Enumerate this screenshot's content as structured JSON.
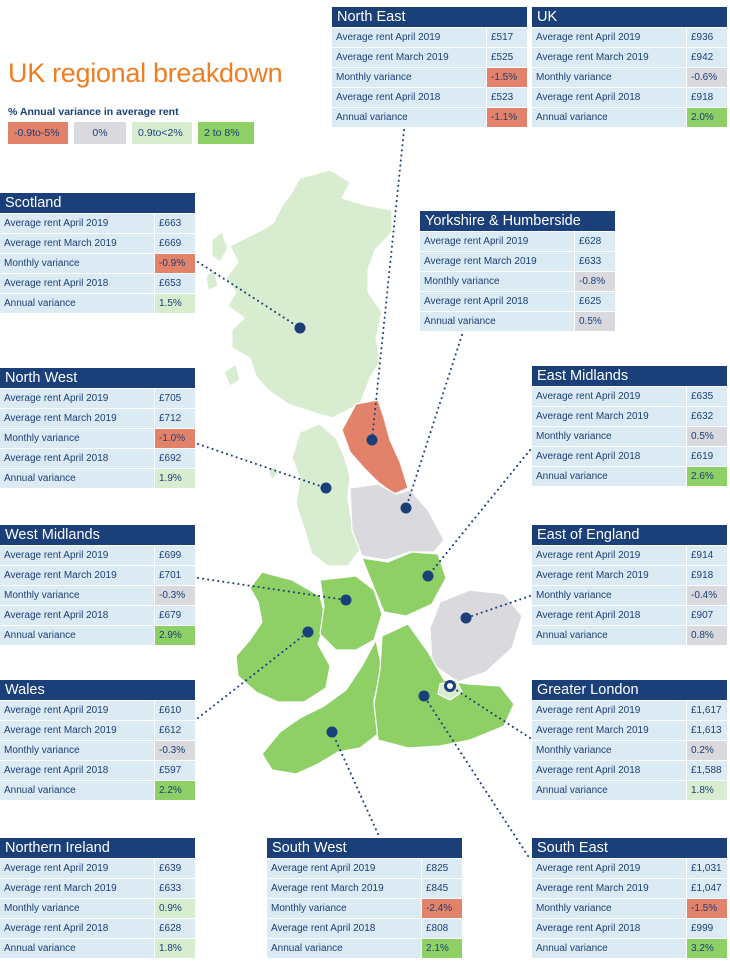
{
  "title": "UK regional breakdown",
  "legend": {
    "heading": "% Annual variance in average rent",
    "items": [
      {
        "label": "-0.9to-5%",
        "color": "#e2826a"
      },
      {
        "label": "0%",
        "color": "#d9d9de"
      },
      {
        "label": "0.9to<2%",
        "color": "#d8ecd0"
      },
      {
        "label": "2 to 8%",
        "color": "#8ecf66"
      }
    ]
  },
  "colors": {
    "header": "#1b3f78",
    "label_bg": "#dcebf3",
    "title": "#ef7d22",
    "marker": "#1b3f78"
  },
  "regions": {
    "north_east": {
      "name": "North East",
      "rows": [
        {
          "label": "Average rent April 2019",
          "value": "£517",
          "cls": ""
        },
        {
          "label": "Average rent March 2019",
          "value": "£525",
          "cls": ""
        },
        {
          "label": "Monthly variance",
          "value": "-1.5%",
          "cls": "c0"
        },
        {
          "label": "Average rent April 2018",
          "value": "£523",
          "cls": ""
        },
        {
          "label": "Annual variance",
          "value": "-1.1%",
          "cls": "c0"
        }
      ]
    },
    "uk": {
      "name": "UK",
      "rows": [
        {
          "label": "Average rent April 2019",
          "value": "£936",
          "cls": ""
        },
        {
          "label": "Average rent March 2019",
          "value": "£942",
          "cls": ""
        },
        {
          "label": "Monthly variance",
          "value": "-0.6%",
          "cls": "c1"
        },
        {
          "label": "Average rent April 2018",
          "value": "£918",
          "cls": ""
        },
        {
          "label": "Annual variance",
          "value": "2.0%",
          "cls": "c3"
        }
      ]
    },
    "scotland": {
      "name": "Scotland",
      "rows": [
        {
          "label": "Average rent April 2019",
          "value": "£663",
          "cls": ""
        },
        {
          "label": "Average rent March 2019",
          "value": "£669",
          "cls": ""
        },
        {
          "label": "Monthly variance",
          "value": "-0.9%",
          "cls": "c0"
        },
        {
          "label": "Average rent April 2018",
          "value": "£653",
          "cls": ""
        },
        {
          "label": "Annual variance",
          "value": "1.5%",
          "cls": "c2"
        }
      ]
    },
    "yorkshire": {
      "name": "Yorkshire & Humberside",
      "rows": [
        {
          "label": "Average rent April 2019",
          "value": "£628",
          "cls": ""
        },
        {
          "label": "Average rent March 2019",
          "value": "£633",
          "cls": ""
        },
        {
          "label": "Monthly variance",
          "value": "-0.8%",
          "cls": "c1"
        },
        {
          "label": "Average rent April 2018",
          "value": "£625",
          "cls": ""
        },
        {
          "label": "Annual variance",
          "value": "0.5%",
          "cls": "c1"
        }
      ]
    },
    "north_west": {
      "name": "North West",
      "rows": [
        {
          "label": "Average rent April 2019",
          "value": "£705",
          "cls": ""
        },
        {
          "label": "Average rent March 2019",
          "value": "£712",
          "cls": ""
        },
        {
          "label": "Monthly variance",
          "value": "-1.0%",
          "cls": "c0"
        },
        {
          "label": "Average rent April 2018",
          "value": "£692",
          "cls": ""
        },
        {
          "label": "Annual variance",
          "value": "1.9%",
          "cls": "c2"
        }
      ]
    },
    "east_midlands": {
      "name": "East Midlands",
      "rows": [
        {
          "label": "Average rent April 2019",
          "value": "£635",
          "cls": ""
        },
        {
          "label": "Average rent March 2019",
          "value": "£632",
          "cls": ""
        },
        {
          "label": "Monthly variance",
          "value": "0.5%",
          "cls": "c1"
        },
        {
          "label": "Average rent April 2018",
          "value": "£619",
          "cls": ""
        },
        {
          "label": "Annual variance",
          "value": "2.6%",
          "cls": "c3"
        }
      ]
    },
    "west_midlands": {
      "name": "West Midlands",
      "rows": [
        {
          "label": "Average rent April 2019",
          "value": "£699",
          "cls": ""
        },
        {
          "label": "Average rent March 2019",
          "value": "£701",
          "cls": ""
        },
        {
          "label": "Monthly variance",
          "value": "-0.3%",
          "cls": "c1"
        },
        {
          "label": "Average rent April 2018",
          "value": "£679",
          "cls": ""
        },
        {
          "label": "Annual variance",
          "value": "2.9%",
          "cls": "c3"
        }
      ]
    },
    "east_of_england": {
      "name": "East of England",
      "rows": [
        {
          "label": "Average rent April 2019",
          "value": "£914",
          "cls": ""
        },
        {
          "label": "Average rent March 2019",
          "value": "£918",
          "cls": ""
        },
        {
          "label": "Monthly variance",
          "value": "-0.4%",
          "cls": "c1"
        },
        {
          "label": "Average rent April 2018",
          "value": "£907",
          "cls": ""
        },
        {
          "label": "Annual variance",
          "value": "0.8%",
          "cls": "c1"
        }
      ]
    },
    "wales": {
      "name": "Wales",
      "rows": [
        {
          "label": "Average rent April 2019",
          "value": "£610",
          "cls": ""
        },
        {
          "label": "Average rent March 2019",
          "value": "£612",
          "cls": ""
        },
        {
          "label": "Monthly variance",
          "value": "-0.3%",
          "cls": "c1"
        },
        {
          "label": "Average rent April 2018",
          "value": "£597",
          "cls": ""
        },
        {
          "label": "Annual variance",
          "value": "2.2%",
          "cls": "c3"
        }
      ]
    },
    "greater_london": {
      "name": "Greater London",
      "rows": [
        {
          "label": "Average rent April 2019",
          "value": "£1,617",
          "cls": ""
        },
        {
          "label": "Average rent March 2019",
          "value": "£1,613",
          "cls": ""
        },
        {
          "label": "Monthly variance",
          "value": "0.2%",
          "cls": "c1"
        },
        {
          "label": "Average rent April 2018",
          "value": "£1,588",
          "cls": ""
        },
        {
          "label": "Annual variance",
          "value": "1.8%",
          "cls": "c2"
        }
      ]
    },
    "northern_ireland": {
      "name": "Northern Ireland",
      "rows": [
        {
          "label": "Average rent April 2019",
          "value": "£639",
          "cls": ""
        },
        {
          "label": "Average rent March 2019",
          "value": "£633",
          "cls": ""
        },
        {
          "label": "Monthly variance",
          "value": "0.9%",
          "cls": "c2"
        },
        {
          "label": "Average rent April 2018",
          "value": "£628",
          "cls": ""
        },
        {
          "label": "Annual variance",
          "value": "1.8%",
          "cls": "c2"
        }
      ]
    },
    "south_west": {
      "name": "South West",
      "rows": [
        {
          "label": "Average rent April 2019",
          "value": "£825",
          "cls": ""
        },
        {
          "label": "Average rent March 2019",
          "value": "£845",
          "cls": ""
        },
        {
          "label": "Monthly variance",
          "value": "-2.4%",
          "cls": "c0"
        },
        {
          "label": "Average rent April 2018",
          "value": "£808",
          "cls": ""
        },
        {
          "label": "Annual variance",
          "value": "2.1%",
          "cls": "c3"
        }
      ]
    },
    "south_east": {
      "name": "South East",
      "rows": [
        {
          "label": "Average rent April 2019",
          "value": "£1,031",
          "cls": ""
        },
        {
          "label": "Average rent March 2019",
          "value": "£1,047",
          "cls": ""
        },
        {
          "label": "Monthly variance",
          "value": "-1.5%",
          "cls": "c0"
        },
        {
          "label": "Average rent April 2018",
          "value": "£999",
          "cls": ""
        },
        {
          "label": "Annual variance",
          "value": "3.2%",
          "cls": "c3"
        }
      ]
    }
  }
}
